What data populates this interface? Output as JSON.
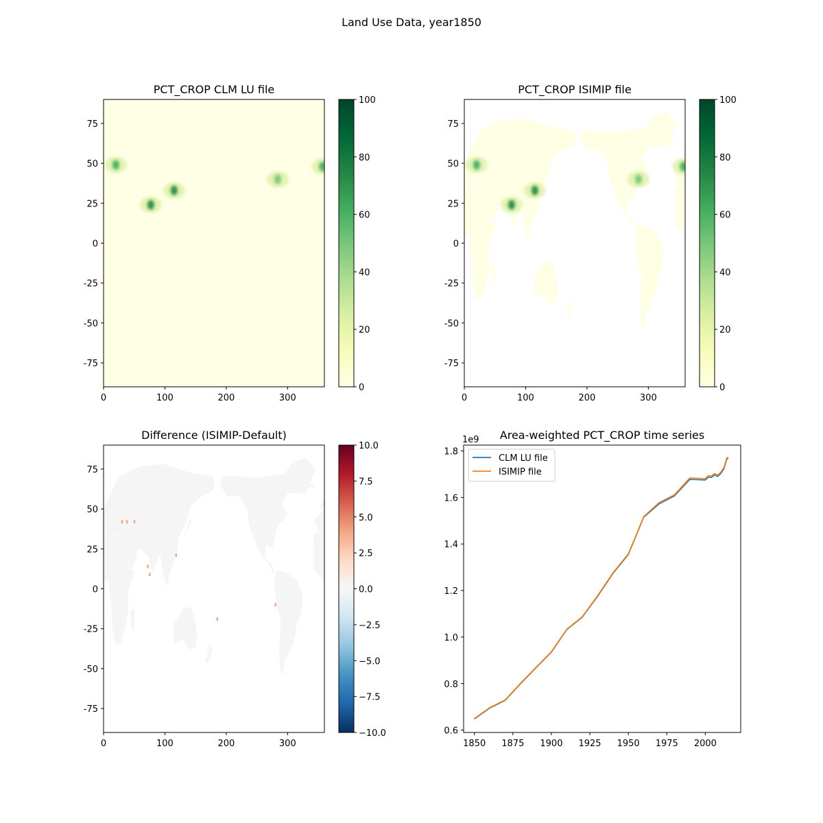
{
  "figure": {
    "suptitle": "Land Use Data, year1850"
  },
  "chart_data": [
    {
      "type": "heatmap",
      "title": "PCT_CROP CLM LU file",
      "xlabel": "",
      "ylabel": "",
      "x_range": [
        0,
        360
      ],
      "y_range": [
        -90,
        90
      ],
      "x_ticks": [
        0,
        100,
        200,
        300
      ],
      "y_ticks": [
        -75,
        -50,
        -25,
        0,
        25,
        50,
        75
      ],
      "colormap": "Greens",
      "color_range": [
        0,
        100
      ],
      "colorbar_ticks": [
        0,
        20,
        40,
        60,
        80,
        100
      ],
      "colors": {
        "low": "#ffffe5",
        "high": "#004529"
      },
      "ocean_masked": false,
      "hotspots": [
        {
          "lon": 77,
          "lat": 24,
          "value": 70
        },
        {
          "lon": 115,
          "lat": 33,
          "value": 65
        },
        {
          "lon": 20,
          "lat": 49,
          "value": 55
        },
        {
          "lon": 357,
          "lat": 48,
          "value": 60
        },
        {
          "lon": 284,
          "lat": 40,
          "value": 45
        }
      ]
    },
    {
      "type": "heatmap",
      "title": "PCT_CROP ISIMIP file",
      "xlabel": "",
      "ylabel": "",
      "x_range": [
        0,
        360
      ],
      "y_range": [
        -90,
        90
      ],
      "x_ticks": [
        0,
        100,
        200,
        300
      ],
      "y_ticks": [
        -75,
        -50,
        -25,
        0,
        25,
        50,
        75
      ],
      "colormap": "Greens",
      "color_range": [
        0,
        100
      ],
      "colorbar_ticks": [
        0,
        20,
        40,
        60,
        80,
        100
      ],
      "colors": {
        "low": "#ffffe5",
        "high": "#004529"
      },
      "ocean_masked": true,
      "hotspots": [
        {
          "lon": 77,
          "lat": 24,
          "value": 70
        },
        {
          "lon": 115,
          "lat": 33,
          "value": 65
        },
        {
          "lon": 20,
          "lat": 49,
          "value": 55
        },
        {
          "lon": 357,
          "lat": 48,
          "value": 60
        },
        {
          "lon": 284,
          "lat": 40,
          "value": 45
        }
      ]
    },
    {
      "type": "heatmap",
      "title": "Difference (ISIMIP-Default)",
      "xlabel": "",
      "ylabel": "",
      "x_range": [
        0,
        360
      ],
      "y_range": [
        -90,
        90
      ],
      "x_ticks": [
        0,
        100,
        200,
        300
      ],
      "y_ticks": [
        -75,
        -50,
        -25,
        0,
        25,
        50,
        75
      ],
      "colormap": "RdBu_r",
      "color_range": [
        -10,
        10
      ],
      "colorbar_ticks": [
        "−10.0",
        "−7.5",
        "−5.0",
        "−2.5",
        "0.0",
        "2.5",
        "5.0",
        "7.5",
        "10.0"
      ],
      "colors": {
        "land": "#f5f5f5",
        "positive": "#f4a582"
      },
      "ocean_masked": true,
      "positive_cells": [
        {
          "lon": 30,
          "lat": 42
        },
        {
          "lon": 38,
          "lat": 42
        },
        {
          "lon": 50,
          "lat": 42
        },
        {
          "lon": 72,
          "lat": 14
        },
        {
          "lon": 75,
          "lat": 9
        },
        {
          "lon": 118,
          "lat": 21
        },
        {
          "lon": 185,
          "lat": -19
        },
        {
          "lon": 280,
          "lat": -10
        }
      ]
    },
    {
      "type": "line",
      "title": "Area-weighted PCT_CROP time series",
      "xlabel": "",
      "ylabel": "",
      "offset_label": "1e9",
      "xlim": [
        1843,
        2023
      ],
      "ylim": [
        0.59,
        1.825
      ],
      "x_ticks": [
        1850,
        1875,
        1900,
        1925,
        1950,
        1975,
        2000
      ],
      "y_ticks": [
        "0.6",
        "0.8",
        "1.0",
        "1.2",
        "1.4",
        "1.6",
        "1.8"
      ],
      "legend_location": "upper left",
      "series": [
        {
          "name": "CLM LU file",
          "color": "#1f77b4",
          "x": [
            1850,
            1860,
            1870,
            1880,
            1890,
            1900,
            1910,
            1920,
            1930,
            1940,
            1950,
            1960,
            1970,
            1980,
            1990,
            2000,
            2002,
            2004,
            2006,
            2008,
            2010,
            2012,
            2014,
            2015
          ],
          "values": [
            0.648,
            0.695,
            0.728,
            0.8,
            0.868,
            0.935,
            1.032,
            1.085,
            1.175,
            1.273,
            1.355,
            1.515,
            1.572,
            1.607,
            1.678,
            1.675,
            1.688,
            1.686,
            1.697,
            1.69,
            1.702,
            1.722,
            1.765,
            1.768
          ]
        },
        {
          "name": "ISIMIP file",
          "color": "#ff7f0e",
          "x": [
            1850,
            1860,
            1870,
            1880,
            1890,
            1900,
            1910,
            1920,
            1930,
            1940,
            1950,
            1960,
            1970,
            1980,
            1990,
            2000,
            2002,
            2004,
            2006,
            2008,
            2010,
            2012,
            2014,
            2015
          ],
          "values": [
            0.65,
            0.697,
            0.73,
            0.802,
            0.87,
            0.937,
            1.034,
            1.087,
            1.178,
            1.276,
            1.358,
            1.518,
            1.578,
            1.612,
            1.684,
            1.681,
            1.694,
            1.692,
            1.703,
            1.696,
            1.708,
            1.728,
            1.77,
            1.772
          ]
        }
      ]
    }
  ]
}
